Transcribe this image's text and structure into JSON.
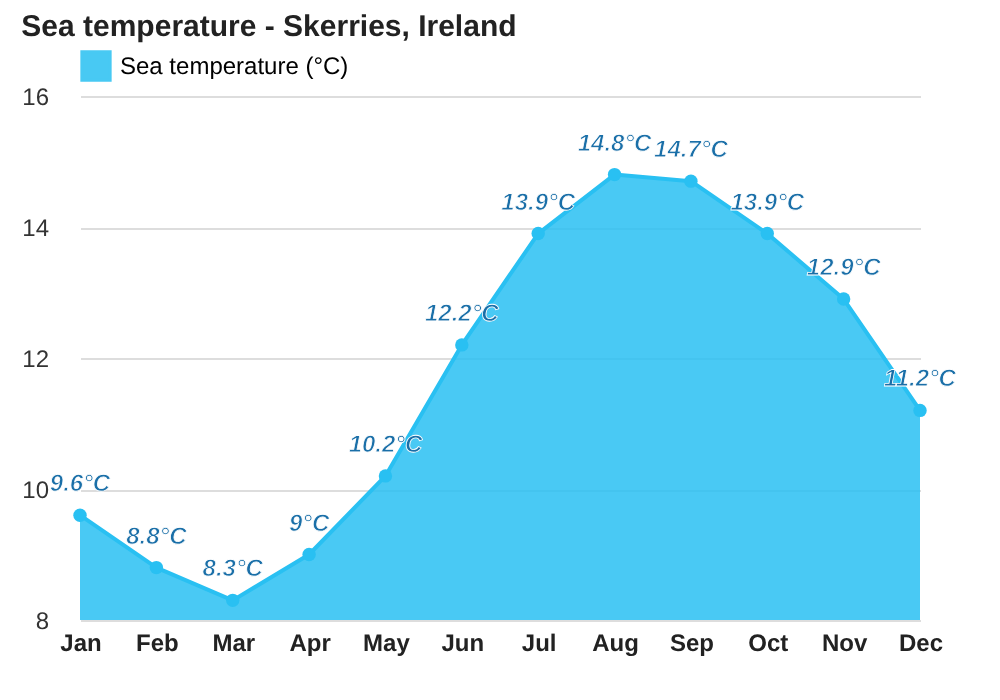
{
  "chart_data": {
    "type": "area",
    "title": "Sea temperature - Skerries, Ireland",
    "categories": [
      "Jan",
      "Feb",
      "Mar",
      "Apr",
      "May",
      "Jun",
      "Jul",
      "Aug",
      "Sep",
      "Oct",
      "Nov",
      "Dec"
    ],
    "series": [
      {
        "name": "Sea temperature (°C)",
        "color": "#29c0f2",
        "values": [
          9.6,
          8.8,
          8.3,
          9,
          10.2,
          12.2,
          13.9,
          14.8,
          14.7,
          13.9,
          12.9,
          11.2
        ],
        "value_labels": [
          "9.6°C",
          "8.8°C",
          "8.3°C",
          "9°C",
          "10.2°C",
          "12.2°C",
          "13.9°C",
          "14.8°C",
          "14.7°C",
          "13.9°C",
          "12.9°C",
          "11.2°C"
        ]
      }
    ],
    "ylim": [
      8,
      16
    ],
    "yticks": [
      8,
      10,
      12,
      14,
      16
    ],
    "grid": "y",
    "legend": "top left",
    "marker": "circle"
  }
}
